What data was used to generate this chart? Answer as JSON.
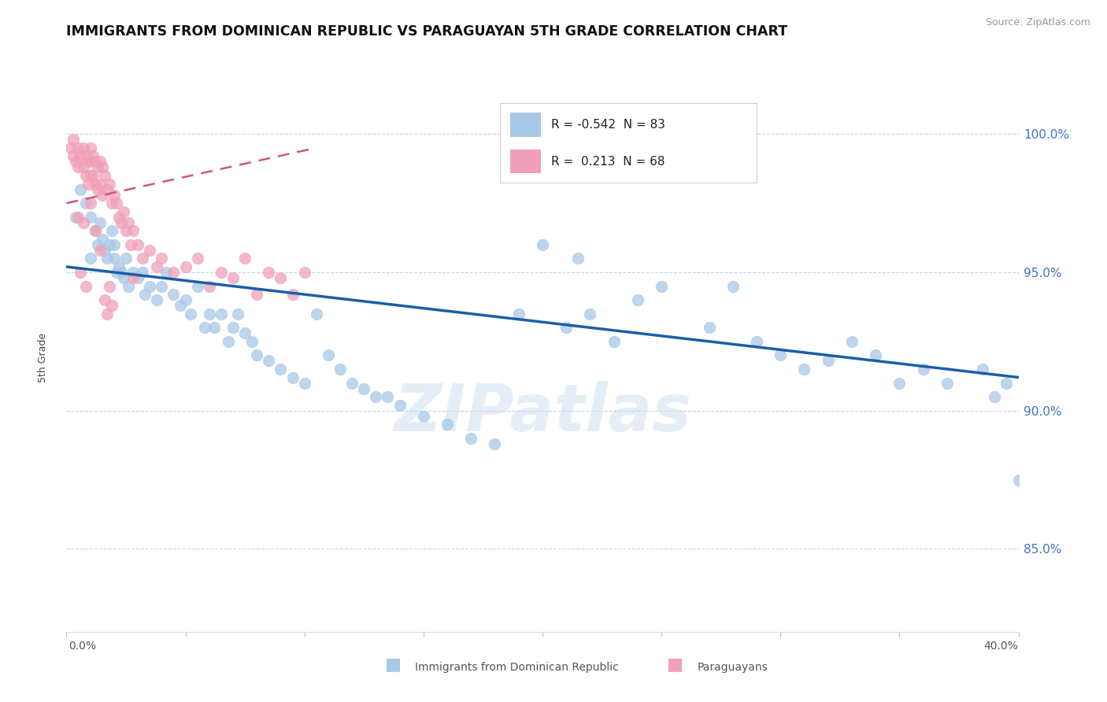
{
  "title": "IMMIGRANTS FROM DOMINICAN REPUBLIC VS PARAGUAYAN 5TH GRADE CORRELATION CHART",
  "source": "Source: ZipAtlas.com",
  "ylabel": "5th Grade",
  "y_ticks": [
    85.0,
    90.0,
    95.0,
    100.0
  ],
  "y_tick_labels": [
    "85.0%",
    "90.0%",
    "95.0%",
    "100.0%"
  ],
  "x_min": 0.0,
  "x_max": 40.0,
  "y_min": 82.0,
  "y_max": 101.8,
  "legend_blue_r": "-0.542",
  "legend_blue_n": "83",
  "legend_pink_r": "0.213",
  "legend_pink_n": "68",
  "blue_color": "#a8c8e8",
  "blue_line_color": "#1a5fa8",
  "pink_color": "#f0a0b8",
  "pink_line_color": "#d05878",
  "watermark": "ZIPatlas",
  "legend_label_blue": "Immigrants from Dominican Republic",
  "legend_label_pink": "Paraguayans",
  "blue_scatter_x": [
    0.4,
    0.6,
    0.8,
    1.0,
    1.0,
    1.2,
    1.3,
    1.4,
    1.5,
    1.6,
    1.7,
    1.8,
    1.9,
    2.0,
    2.0,
    2.1,
    2.2,
    2.3,
    2.4,
    2.5,
    2.6,
    2.8,
    3.0,
    3.2,
    3.3,
    3.5,
    3.8,
    4.0,
    4.2,
    4.5,
    4.8,
    5.0,
    5.2,
    5.5,
    5.8,
    6.0,
    6.2,
    6.5,
    6.8,
    7.0,
    7.2,
    7.5,
    7.8,
    8.0,
    8.5,
    9.0,
    9.5,
    10.0,
    10.5,
    11.0,
    11.5,
    12.0,
    12.5,
    13.0,
    13.5,
    14.0,
    15.0,
    16.0,
    17.0,
    18.0,
    19.0,
    20.0,
    21.0,
    22.0,
    23.0,
    24.0,
    25.0,
    27.0,
    29.0,
    30.0,
    31.0,
    32.0,
    33.0,
    34.0,
    35.0,
    36.0,
    37.0,
    38.5,
    39.0,
    39.5,
    40.0,
    21.5,
    28.0
  ],
  "blue_scatter_y": [
    97.0,
    98.0,
    97.5,
    95.5,
    97.0,
    96.5,
    96.0,
    96.8,
    96.2,
    95.8,
    95.5,
    96.0,
    96.5,
    95.5,
    96.0,
    95.0,
    95.2,
    95.0,
    94.8,
    95.5,
    94.5,
    95.0,
    94.8,
    95.0,
    94.2,
    94.5,
    94.0,
    94.5,
    95.0,
    94.2,
    93.8,
    94.0,
    93.5,
    94.5,
    93.0,
    93.5,
    93.0,
    93.5,
    92.5,
    93.0,
    93.5,
    92.8,
    92.5,
    92.0,
    91.8,
    91.5,
    91.2,
    91.0,
    93.5,
    92.0,
    91.5,
    91.0,
    90.8,
    90.5,
    90.5,
    90.2,
    89.8,
    89.5,
    89.0,
    88.8,
    93.5,
    96.0,
    93.0,
    93.5,
    92.5,
    94.0,
    94.5,
    93.0,
    92.5,
    92.0,
    91.5,
    91.8,
    92.5,
    92.0,
    91.0,
    91.5,
    91.0,
    91.5,
    90.5,
    91.0,
    87.5,
    95.5,
    94.5
  ],
  "pink_scatter_x": [
    0.2,
    0.3,
    0.3,
    0.4,
    0.5,
    0.5,
    0.6,
    0.7,
    0.7,
    0.8,
    0.8,
    0.9,
    0.9,
    1.0,
    1.0,
    1.0,
    1.1,
    1.1,
    1.2,
    1.2,
    1.3,
    1.3,
    1.4,
    1.4,
    1.5,
    1.5,
    1.6,
    1.7,
    1.8,
    1.9,
    2.0,
    2.1,
    2.2,
    2.3,
    2.4,
    2.5,
    2.6,
    2.7,
    2.8,
    3.0,
    3.2,
    3.5,
    3.8,
    4.0,
    4.5,
    5.0,
    5.5,
    6.0,
    6.5,
    7.0,
    7.5,
    8.0,
    8.5,
    9.0,
    9.5,
    10.0,
    1.6,
    1.7,
    1.8,
    1.9,
    0.6,
    0.8,
    1.0,
    2.8,
    1.2,
    1.4,
    0.5,
    0.7
  ],
  "pink_scatter_y": [
    99.5,
    99.2,
    99.8,
    99.0,
    99.5,
    98.8,
    99.2,
    99.5,
    98.8,
    99.2,
    98.5,
    99.0,
    98.2,
    99.5,
    99.0,
    98.5,
    99.2,
    98.5,
    99.0,
    98.2,
    98.8,
    98.0,
    99.0,
    98.2,
    98.8,
    97.8,
    98.5,
    98.0,
    98.2,
    97.5,
    97.8,
    97.5,
    97.0,
    96.8,
    97.2,
    96.5,
    96.8,
    96.0,
    96.5,
    96.0,
    95.5,
    95.8,
    95.2,
    95.5,
    95.0,
    95.2,
    95.5,
    94.5,
    95.0,
    94.8,
    95.5,
    94.2,
    95.0,
    94.8,
    94.2,
    95.0,
    94.0,
    93.5,
    94.5,
    93.8,
    95.0,
    94.5,
    97.5,
    94.8,
    96.5,
    95.8,
    97.0,
    96.8
  ],
  "blue_trendline_x": [
    0.0,
    40.0
  ],
  "blue_trendline_y": [
    95.2,
    91.2
  ],
  "pink_trendline_x": [
    0.0,
    10.5
  ],
  "pink_trendline_y": [
    97.5,
    99.5
  ]
}
